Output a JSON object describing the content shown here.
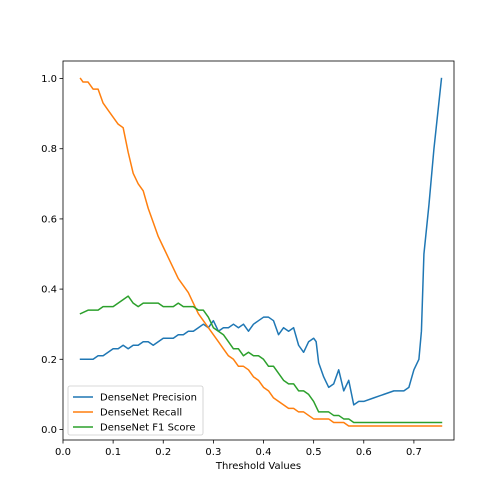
{
  "chart_data": {
    "type": "line",
    "title": "",
    "xlabel": "Threshold Values",
    "ylabel": "",
    "xlim": [
      0.0,
      0.78
    ],
    "ylim": [
      -0.03,
      1.05
    ],
    "xticks": [
      0.0,
      0.1,
      0.2,
      0.3,
      0.4,
      0.5,
      0.6,
      0.7
    ],
    "xtick_labels": [
      "0.0",
      "0.1",
      "0.2",
      "0.3",
      "0.4",
      "0.5",
      "0.6",
      "0.7"
    ],
    "yticks": [
      0.0,
      0.2,
      0.4,
      0.6,
      0.8,
      1.0
    ],
    "ytick_labels": [
      "0.0",
      "0.2",
      "0.4",
      "0.6",
      "0.8",
      "1.0"
    ],
    "grid": false,
    "legend_position": "lower-left",
    "series": [
      {
        "name": "DenseNet Precision",
        "color": "#1f77b4",
        "x": [
          0.035,
          0.05,
          0.06,
          0.07,
          0.08,
          0.09,
          0.1,
          0.11,
          0.12,
          0.13,
          0.14,
          0.15,
          0.16,
          0.17,
          0.18,
          0.19,
          0.2,
          0.21,
          0.22,
          0.23,
          0.24,
          0.25,
          0.26,
          0.27,
          0.28,
          0.29,
          0.3,
          0.31,
          0.32,
          0.33,
          0.34,
          0.35,
          0.36,
          0.37,
          0.38,
          0.39,
          0.4,
          0.41,
          0.42,
          0.43,
          0.44,
          0.45,
          0.46,
          0.47,
          0.48,
          0.49,
          0.5,
          0.505,
          0.51,
          0.52,
          0.53,
          0.54,
          0.55,
          0.56,
          0.57,
          0.58,
          0.59,
          0.6,
          0.62,
          0.64,
          0.66,
          0.68,
          0.69,
          0.7,
          0.71,
          0.715,
          0.72,
          0.73,
          0.74,
          0.755
        ],
        "y": [
          0.2,
          0.2,
          0.2,
          0.21,
          0.21,
          0.22,
          0.23,
          0.23,
          0.24,
          0.23,
          0.24,
          0.24,
          0.25,
          0.25,
          0.24,
          0.25,
          0.26,
          0.26,
          0.26,
          0.27,
          0.27,
          0.28,
          0.28,
          0.29,
          0.3,
          0.29,
          0.31,
          0.28,
          0.29,
          0.29,
          0.3,
          0.29,
          0.3,
          0.28,
          0.3,
          0.31,
          0.32,
          0.32,
          0.31,
          0.27,
          0.29,
          0.28,
          0.29,
          0.24,
          0.22,
          0.25,
          0.26,
          0.25,
          0.19,
          0.15,
          0.12,
          0.13,
          0.17,
          0.11,
          0.14,
          0.07,
          0.08,
          0.08,
          0.09,
          0.1,
          0.11,
          0.11,
          0.12,
          0.17,
          0.2,
          0.28,
          0.5,
          0.64,
          0.8,
          1.0
        ]
      },
      {
        "name": "DenseNet Recall",
        "color": "#ff7f0e",
        "x": [
          0.035,
          0.04,
          0.05,
          0.06,
          0.07,
          0.08,
          0.09,
          0.1,
          0.11,
          0.12,
          0.13,
          0.14,
          0.15,
          0.16,
          0.17,
          0.18,
          0.19,
          0.2,
          0.21,
          0.22,
          0.23,
          0.24,
          0.25,
          0.26,
          0.27,
          0.28,
          0.29,
          0.3,
          0.31,
          0.32,
          0.33,
          0.34,
          0.35,
          0.36,
          0.37,
          0.38,
          0.39,
          0.4,
          0.41,
          0.42,
          0.43,
          0.44,
          0.45,
          0.46,
          0.47,
          0.48,
          0.49,
          0.5,
          0.51,
          0.52,
          0.53,
          0.54,
          0.55,
          0.56,
          0.57,
          0.58,
          0.6,
          0.65,
          0.7,
          0.755
        ],
        "y": [
          1.0,
          0.99,
          0.99,
          0.97,
          0.97,
          0.93,
          0.91,
          0.89,
          0.87,
          0.86,
          0.79,
          0.73,
          0.7,
          0.68,
          0.63,
          0.59,
          0.55,
          0.52,
          0.49,
          0.46,
          0.43,
          0.41,
          0.39,
          0.36,
          0.33,
          0.31,
          0.29,
          0.27,
          0.25,
          0.23,
          0.21,
          0.2,
          0.18,
          0.18,
          0.17,
          0.15,
          0.14,
          0.12,
          0.11,
          0.09,
          0.08,
          0.07,
          0.06,
          0.06,
          0.05,
          0.05,
          0.04,
          0.03,
          0.03,
          0.03,
          0.03,
          0.02,
          0.02,
          0.02,
          0.01,
          0.01,
          0.01,
          0.01,
          0.01,
          0.01
        ]
      },
      {
        "name": "DenseNet F1 Score",
        "color": "#2ca02c",
        "x": [
          0.035,
          0.05,
          0.06,
          0.07,
          0.08,
          0.09,
          0.1,
          0.11,
          0.12,
          0.13,
          0.14,
          0.15,
          0.16,
          0.17,
          0.18,
          0.19,
          0.2,
          0.21,
          0.22,
          0.23,
          0.24,
          0.25,
          0.26,
          0.27,
          0.28,
          0.29,
          0.3,
          0.31,
          0.32,
          0.33,
          0.34,
          0.35,
          0.36,
          0.37,
          0.38,
          0.39,
          0.4,
          0.41,
          0.42,
          0.43,
          0.44,
          0.45,
          0.46,
          0.47,
          0.48,
          0.49,
          0.5,
          0.51,
          0.52,
          0.53,
          0.54,
          0.55,
          0.56,
          0.57,
          0.58,
          0.6,
          0.65,
          0.7,
          0.755
        ],
        "y": [
          0.33,
          0.34,
          0.34,
          0.34,
          0.35,
          0.35,
          0.35,
          0.36,
          0.37,
          0.38,
          0.36,
          0.35,
          0.36,
          0.36,
          0.36,
          0.36,
          0.35,
          0.35,
          0.35,
          0.36,
          0.35,
          0.35,
          0.35,
          0.34,
          0.34,
          0.32,
          0.29,
          0.28,
          0.27,
          0.25,
          0.23,
          0.23,
          0.21,
          0.22,
          0.21,
          0.21,
          0.2,
          0.18,
          0.18,
          0.16,
          0.14,
          0.13,
          0.13,
          0.11,
          0.11,
          0.1,
          0.08,
          0.05,
          0.05,
          0.05,
          0.04,
          0.04,
          0.03,
          0.03,
          0.02,
          0.02,
          0.02,
          0.02,
          0.02
        ]
      }
    ]
  }
}
